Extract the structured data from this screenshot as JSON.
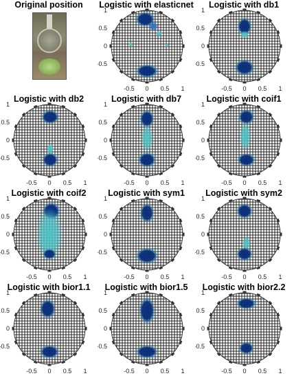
{
  "figure": {
    "original_title": "Original position"
  },
  "axis": {
    "xticks": [
      -0.5,
      0,
      0.5,
      1
    ],
    "yticks": [
      1,
      0.5,
      0,
      -0.5
    ],
    "xtick_labels": [
      "-0.5",
      "0",
      "0.5",
      "1"
    ],
    "ytick_labels": [
      "1",
      "0.5",
      "0",
      "-0.5"
    ]
  },
  "colors": {
    "mesh_fill": "#ffffff",
    "mesh_line": "#777777",
    "dark": "#0a2e7a",
    "mid": "#2f6fbf",
    "light": "#4fc2c7",
    "electrode": "#333333"
  },
  "chart_data": [
    {
      "type": "heatmap",
      "title": "Logistic with elasticnet",
      "xlim": [
        -1,
        1
      ],
      "ylim": [
        -1,
        1
      ],
      "blobs": [
        {
          "x": -0.05,
          "y": 0.75,
          "rx": 0.22,
          "ry": 0.17,
          "level": "dark"
        },
        {
          "x": 0.18,
          "y": 0.55,
          "rx": 0.1,
          "ry": 0.1,
          "level": "mid"
        },
        {
          "x": 0.33,
          "y": 0.35,
          "rx": 0.07,
          "ry": 0.06,
          "level": "light"
        },
        {
          "x": -0.45,
          "y": 0.05,
          "rx": 0.05,
          "ry": 0.05,
          "level": "light"
        },
        {
          "x": 0.55,
          "y": 0.02,
          "rx": 0.04,
          "ry": 0.04,
          "level": "light"
        },
        {
          "x": 0.0,
          "y": -0.7,
          "rx": 0.25,
          "ry": 0.15,
          "level": "dark"
        }
      ]
    },
    {
      "type": "heatmap",
      "title": "Logistic with db1",
      "xlim": [
        -1,
        1
      ],
      "ylim": [
        -1,
        1
      ],
      "blobs": [
        {
          "x": 0.0,
          "y": 0.55,
          "rx": 0.16,
          "ry": 0.2,
          "level": "dark"
        },
        {
          "x": 0.0,
          "y": 0.32,
          "rx": 0.1,
          "ry": 0.08,
          "level": "light"
        },
        {
          "x": 0.0,
          "y": -0.6,
          "rx": 0.22,
          "ry": 0.18,
          "level": "dark"
        }
      ]
    },
    {
      "type": "heatmap",
      "title": "Logistic with db2",
      "xlim": [
        -1,
        1
      ],
      "ylim": [
        -1,
        1
      ],
      "blobs": [
        {
          "x": 0.02,
          "y": 0.65,
          "rx": 0.2,
          "ry": 0.16,
          "level": "dark"
        },
        {
          "x": 0.02,
          "y": -0.25,
          "rx": 0.08,
          "ry": 0.12,
          "level": "light"
        },
        {
          "x": 0.02,
          "y": -0.55,
          "rx": 0.18,
          "ry": 0.16,
          "level": "dark"
        }
      ]
    },
    {
      "type": "heatmap",
      "title": "Logistic with db7",
      "xlim": [
        -1,
        1
      ],
      "ylim": [
        -1,
        1
      ],
      "blobs": [
        {
          "x": 0.0,
          "y": 0.6,
          "rx": 0.16,
          "ry": 0.2,
          "level": "dark"
        },
        {
          "x": 0.0,
          "y": 0.05,
          "rx": 0.13,
          "ry": 0.28,
          "level": "light"
        },
        {
          "x": 0.0,
          "y": -0.55,
          "rx": 0.2,
          "ry": 0.17,
          "level": "dark"
        }
      ]
    },
    {
      "type": "heatmap",
      "title": "Logistic with coif1",
      "xlim": [
        -1,
        1
      ],
      "ylim": [
        -1,
        1
      ],
      "blobs": [
        {
          "x": 0.05,
          "y": 0.65,
          "rx": 0.18,
          "ry": 0.17,
          "level": "dark"
        },
        {
          "x": 0.02,
          "y": 0.1,
          "rx": 0.12,
          "ry": 0.3,
          "level": "light"
        },
        {
          "x": 0.05,
          "y": -0.55,
          "rx": 0.2,
          "ry": 0.15,
          "level": "dark"
        }
      ]
    },
    {
      "type": "heatmap",
      "title": "Logistic with coif2",
      "xlim": [
        -1,
        1
      ],
      "ylim": [
        -1,
        1
      ],
      "blobs": [
        {
          "x": 0.05,
          "y": 0.65,
          "rx": 0.2,
          "ry": 0.2,
          "level": "dark"
        },
        {
          "x": 0.0,
          "y": 0.0,
          "rx": 0.28,
          "ry": 0.55,
          "level": "light"
        },
        {
          "x": 0.0,
          "y": -0.55,
          "rx": 0.15,
          "ry": 0.12,
          "level": "dark"
        }
      ]
    },
    {
      "type": "heatmap",
      "title": "Logistic with sym1",
      "xlim": [
        -1,
        1
      ],
      "ylim": [
        -1,
        1
      ],
      "blobs": [
        {
          "x": 0.0,
          "y": 0.6,
          "rx": 0.16,
          "ry": 0.22,
          "level": "dark"
        },
        {
          "x": 0.0,
          "y": -0.6,
          "rx": 0.25,
          "ry": 0.18,
          "level": "dark"
        }
      ]
    },
    {
      "type": "heatmap",
      "title": "Logistic with sym2",
      "xlim": [
        -1,
        1
      ],
      "ylim": [
        -1,
        1
      ],
      "blobs": [
        {
          "x": 0.0,
          "y": 0.65,
          "rx": 0.18,
          "ry": 0.17,
          "level": "dark"
        },
        {
          "x": 0.05,
          "y": -0.25,
          "rx": 0.09,
          "ry": 0.15,
          "level": "light"
        },
        {
          "x": 0.0,
          "y": -0.55,
          "rx": 0.18,
          "ry": 0.15,
          "level": "dark"
        }
      ]
    },
    {
      "type": "heatmap",
      "title": "Logistic with bior1.1",
      "xlim": [
        -1,
        1
      ],
      "ylim": [
        -1,
        1
      ],
      "blobs": [
        {
          "x": -0.05,
          "y": 0.55,
          "rx": 0.18,
          "ry": 0.22,
          "level": "dark"
        },
        {
          "x": 0.0,
          "y": -0.65,
          "rx": 0.22,
          "ry": 0.15,
          "level": "dark"
        }
      ]
    },
    {
      "type": "heatmap",
      "title": "Logistic with bior1.5",
      "xlim": [
        -1,
        1
      ],
      "ylim": [
        -1,
        1
      ],
      "blobs": [
        {
          "x": 0.0,
          "y": 0.5,
          "rx": 0.18,
          "ry": 0.3,
          "level": "dark"
        },
        {
          "x": 0.0,
          "y": -0.65,
          "rx": 0.25,
          "ry": 0.15,
          "level": "dark"
        }
      ]
    },
    {
      "type": "heatmap",
      "title": "Logistic with bior2.2",
      "xlim": [
        -1,
        1
      ],
      "ylim": [
        -1,
        1
      ],
      "blobs": [
        {
          "x": 0.05,
          "y": 0.7,
          "rx": 0.22,
          "ry": 0.13,
          "level": "dark"
        },
        {
          "x": 0.05,
          "y": -0.55,
          "rx": 0.17,
          "ry": 0.14,
          "level": "dark"
        }
      ]
    }
  ]
}
